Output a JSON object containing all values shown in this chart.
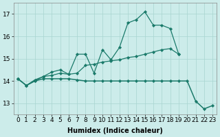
{
  "xlabel": "Humidex (Indice chaleur)",
  "x": [
    0,
    1,
    2,
    3,
    4,
    5,
    6,
    7,
    8,
    9,
    10,
    11,
    12,
    13,
    14,
    15,
    16,
    17,
    18,
    19,
    20,
    21,
    22,
    23
  ],
  "line1": [
    14.1,
    13.8,
    14.0,
    14.2,
    14.4,
    14.5,
    14.3,
    15.2,
    15.2,
    14.35,
    15.4,
    14.95,
    15.5,
    16.6,
    16.75,
    17.1,
    16.5,
    16.5,
    16.35,
    15.2,
    null,
    null,
    null,
    null
  ],
  "line2": [
    14.1,
    13.8,
    14.05,
    14.2,
    14.25,
    14.35,
    14.3,
    14.35,
    14.7,
    14.75,
    14.85,
    14.9,
    14.95,
    15.05,
    15.1,
    15.2,
    15.3,
    15.4,
    15.45,
    15.2,
    null,
    null,
    null,
    null
  ],
  "line3": [
    14.1,
    13.8,
    14.0,
    14.1,
    14.1,
    14.1,
    14.1,
    14.05,
    14.0,
    14.0,
    14.0,
    14.0,
    14.0,
    14.0,
    14.0,
    14.0,
    14.0,
    14.0,
    14.0,
    14.0,
    14.0,
    13.1,
    12.75,
    12.9
  ],
  "line_color": "#1a7a6a",
  "bg_color": "#ccecea",
  "grid_color": "#a8d4d0",
  "ylim": [
    12.5,
    17.5
  ],
  "yticks": [
    13,
    14,
    15,
    16,
    17
  ],
  "xlim": [
    -0.5,
    23.5
  ],
  "label_fontsize": 7,
  "tick_fontsize": 6.5
}
